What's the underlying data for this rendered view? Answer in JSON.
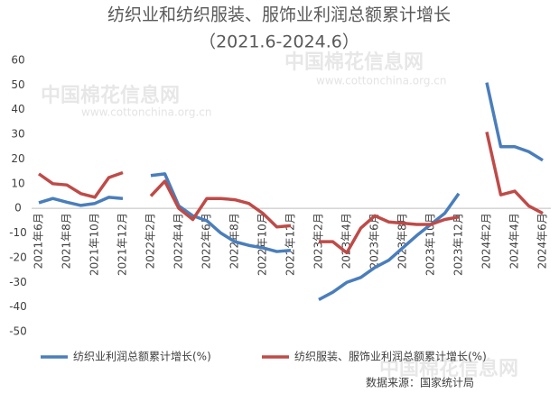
{
  "chart_data": {
    "type": "line",
    "title": "纺织业和纺织服装、服饰业利润总额累计增长",
    "subtitle": "（2021.6-2024.6）",
    "categories": [
      "2021年6月",
      null,
      "2021年8月",
      null,
      "2021年10月",
      null,
      "2021年12月",
      null,
      "2022年2月",
      null,
      "2022年4月",
      null,
      "2022年6月",
      null,
      "2022年8月",
      null,
      "2022年10月",
      null,
      "2022年12月",
      null,
      "2023年2月",
      null,
      "2023年4月",
      null,
      "2023年6月",
      null,
      "2023年8月",
      null,
      "2023年10月",
      null,
      "2023年12月",
      null,
      "2024年2月",
      null,
      "2024年4月",
      null,
      "2024年6月"
    ],
    "series": [
      {
        "name": "纺织业利润总额累计增长(%)",
        "color": "#4a7ebb",
        "values": [
          2.3,
          4,
          2.5,
          1.2,
          2,
          4.5,
          4,
          null,
          13.3,
          14,
          1,
          -3,
          -5,
          -10,
          -13.5,
          -15,
          -16,
          -17.5,
          -17,
          null,
          -37,
          -34,
          -30,
          -28,
          -24,
          -21,
          -16,
          -11,
          -6.5,
          -2,
          6,
          null,
          51,
          25,
          25,
          23,
          19.5
        ]
      },
      {
        "name": "纺织服装、服饰业利润总额累计增长(%)",
        "color": "#be4b48",
        "values": [
          14,
          10,
          9.5,
          6,
          4.5,
          12.5,
          14.5,
          null,
          5,
          11,
          0,
          -4.5,
          4,
          4,
          3.5,
          2,
          -2,
          -7.5,
          -7,
          null,
          -13.5,
          -13.5,
          -18,
          -8,
          -3,
          -5.5,
          -6,
          -6.5,
          -6.5,
          -4.5,
          -3.5,
          null,
          31,
          5.5,
          7,
          1,
          -2
        ]
      }
    ],
    "ylim": [
      -50,
      60
    ],
    "yticks": [
      -50,
      -40,
      -30,
      -20,
      -10,
      0,
      10,
      20,
      30,
      40,
      50,
      60
    ],
    "grid": false,
    "legend": "bottom",
    "source": "数据来源：国家统计局",
    "watermark": "中国棉花信息网",
    "watermark_url": "www.cottonchina.org.cn"
  }
}
